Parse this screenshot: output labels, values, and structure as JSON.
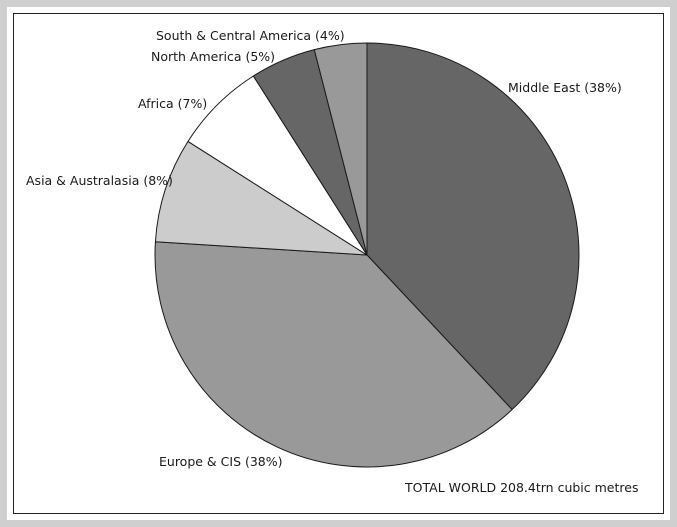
{
  "chart_data": {
    "type": "pie",
    "start_angle_deg": 90,
    "direction": "clockwise",
    "slices": [
      {
        "label": "Middle East (38%)",
        "value": 38,
        "color": "#666666"
      },
      {
        "label": "Europe & CIS (38%)",
        "value": 38,
        "color": "#999999"
      },
      {
        "label": "Asia & Australasia (8%)",
        "value": 8,
        "color": "#cccccc"
      },
      {
        "label": "Africa (7%)",
        "value": 7,
        "color": "#ffffff"
      },
      {
        "label": "North America (5%)",
        "value": 5,
        "color": "#666666"
      },
      {
        "label": "South & Central America (4%)",
        "value": 4,
        "color": "#999999"
      }
    ],
    "footnote": "TOTAL WORLD 208.4trn cubic metres"
  }
}
